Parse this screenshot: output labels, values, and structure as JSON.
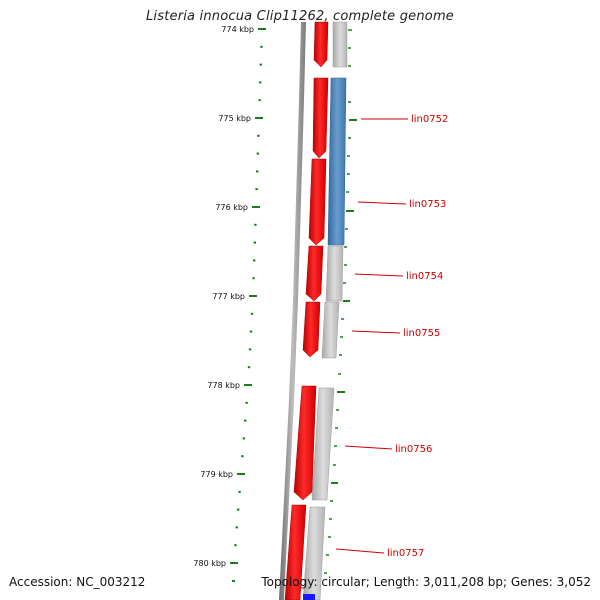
{
  "title": "Listeria innocua Clip11262, complete genome",
  "footer": {
    "accession": "Accession: NC_003212",
    "topology": "Topology: circular; Length: 3,011,208 bp; Genes: 3,052"
  },
  "axis": {
    "unit": "kbp",
    "major_ticks": [
      "774 kbp",
      "775 kbp",
      "776 kbp",
      "777 kbp",
      "778 kbp",
      "779 kbp",
      "780 kbp"
    ]
  },
  "gene_labels": [
    "lin0752",
    "lin0753",
    "lin0754",
    "lin0755",
    "lin0756",
    "lin0757"
  ],
  "colors": {
    "forward_cds": "#ff0000",
    "gene_grey": "#c4c4c4",
    "gene_blue": "#4d86b8",
    "backbone": "#808080",
    "tick": "#1a7f1a",
    "label": "#cc0000",
    "start_blue": "#1a1aff"
  }
}
